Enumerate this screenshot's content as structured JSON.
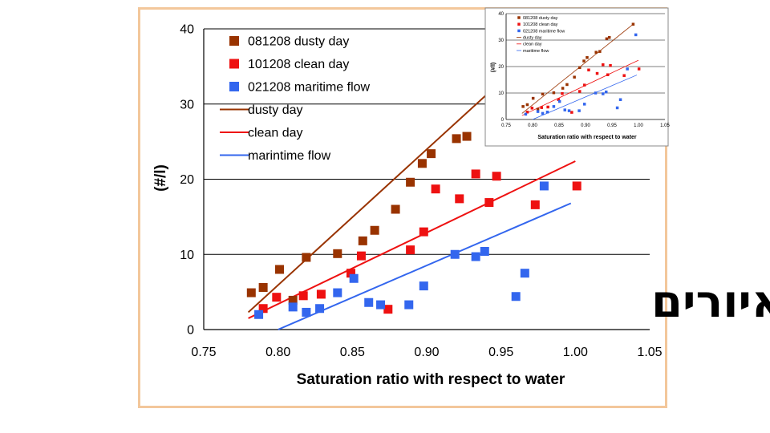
{
  "chart_data": [
    {
      "type": "scatter",
      "title": "",
      "xlabel": "Saturation ratio with respect to water",
      "ylabel": "(#/l)",
      "xlim": [
        0.75,
        1.05
      ],
      "ylim": [
        0,
        40
      ],
      "xticks": [
        "0.75",
        "0.80",
        "0.85",
        "0.90",
        "0.95",
        "1.00",
        "1.05"
      ],
      "yticks": [
        "0",
        "10",
        "20",
        "30",
        "40"
      ],
      "grid": "horizontal",
      "legend_position": "top-left",
      "series": [
        {
          "name": "081208 dusty day",
          "kind": "points",
          "color": "#993300",
          "points": [
            [
              0.782,
              4.9
            ],
            [
              0.79,
              5.6
            ],
            [
              0.801,
              8.0
            ],
            [
              0.81,
              3.9
            ],
            [
              0.819,
              9.6
            ],
            [
              0.84,
              10.1
            ],
            [
              0.857,
              11.8
            ],
            [
              0.865,
              13.2
            ],
            [
              0.879,
              16.0
            ],
            [
              0.889,
              19.6
            ],
            [
              0.897,
              22.1
            ],
            [
              0.903,
              23.4
            ],
            [
              0.92,
              25.4
            ],
            [
              0.927,
              25.7
            ]
          ]
        },
        {
          "name": "101208 clean day",
          "kind": "points",
          "color": "#ee1111",
          "points": [
            [
              0.79,
              2.8
            ],
            [
              0.799,
              4.3
            ],
            [
              0.817,
              4.5
            ],
            [
              0.829,
              4.7
            ],
            [
              0.849,
              7.5
            ],
            [
              0.856,
              9.8
            ],
            [
              0.874,
              2.7
            ],
            [
              0.889,
              10.6
            ],
            [
              0.898,
              13.0
            ],
            [
              0.906,
              18.7
            ],
            [
              0.922,
              17.4
            ],
            [
              0.933,
              20.7
            ],
            [
              0.942,
              16.9
            ],
            [
              0.947,
              20.4
            ],
            [
              0.973,
              16.6
            ],
            [
              1.001,
              19.1
            ]
          ]
        },
        {
          "name": "021208 maritime flow",
          "kind": "points",
          "color": "#3366ee",
          "points": [
            [
              0.787,
              2.0
            ],
            [
              0.81,
              3.0
            ],
            [
              0.819,
              2.3
            ],
            [
              0.828,
              2.8
            ],
            [
              0.84,
              4.9
            ],
            [
              0.851,
              6.8
            ],
            [
              0.861,
              3.6
            ],
            [
              0.869,
              3.3
            ],
            [
              0.888,
              3.3
            ],
            [
              0.898,
              5.8
            ],
            [
              0.919,
              10.0
            ],
            [
              0.933,
              9.7
            ],
            [
              0.939,
              10.4
            ],
            [
              0.96,
              4.4
            ],
            [
              0.966,
              7.5
            ],
            [
              0.979,
              19.1
            ]
          ]
        },
        {
          "name": "dusty day",
          "kind": "line",
          "color": "#993300",
          "points": [
            [
              0.78,
              2.3
            ],
            [
              0.95,
              33.0
            ]
          ]
        },
        {
          "name": "clean day",
          "kind": "line",
          "color": "#ee1111",
          "points": [
            [
              0.78,
              1.5
            ],
            [
              1.0,
              22.4
            ]
          ]
        },
        {
          "name": "marintime flow",
          "kind": "line",
          "color": "#3366ee",
          "points": [
            [
              0.8,
              0.0
            ],
            [
              0.997,
              16.8
            ]
          ]
        }
      ]
    },
    {
      "type": "scatter",
      "title": "",
      "xlabel": "Saturation ratio with respect to water",
      "ylabel": "(#/l)",
      "xlim": [
        0.75,
        1.05
      ],
      "ylim": [
        0,
        40
      ],
      "xticks": [
        "0.75",
        "0.80",
        "0.85",
        "0.90",
        "0.95",
        "1.00",
        "1.05"
      ],
      "yticks": [
        "0",
        "10",
        "20",
        "30",
        "40"
      ],
      "grid": "horizontal",
      "legend_position": "top-left",
      "series": [
        {
          "name": "081208 dusty day",
          "kind": "points",
          "color": "#993300",
          "points": [
            [
              0.782,
              4.9
            ],
            [
              0.79,
              5.6
            ],
            [
              0.801,
              8.0
            ],
            [
              0.81,
              3.9
            ],
            [
              0.819,
              9.6
            ],
            [
              0.84,
              10.1
            ],
            [
              0.857,
              11.8
            ],
            [
              0.865,
              13.2
            ],
            [
              0.879,
              16.0
            ],
            [
              0.889,
              19.6
            ],
            [
              0.897,
              22.1
            ],
            [
              0.903,
              23.4
            ],
            [
              0.92,
              25.4
            ],
            [
              0.927,
              25.7
            ],
            [
              0.94,
              30.5
            ],
            [
              0.945,
              31.0
            ],
            [
              0.99,
              36.0
            ]
          ]
        },
        {
          "name": "101208 clean day",
          "kind": "points",
          "color": "#ee1111",
          "points": [
            [
              0.79,
              2.8
            ],
            [
              0.799,
              4.3
            ],
            [
              0.817,
              4.5
            ],
            [
              0.829,
              4.7
            ],
            [
              0.849,
              7.5
            ],
            [
              0.856,
              9.8
            ],
            [
              0.874,
              2.7
            ],
            [
              0.889,
              10.6
            ],
            [
              0.898,
              13.0
            ],
            [
              0.906,
              18.7
            ],
            [
              0.922,
              17.4
            ],
            [
              0.933,
              20.7
            ],
            [
              0.942,
              16.9
            ],
            [
              0.947,
              20.4
            ],
            [
              0.973,
              16.6
            ],
            [
              1.001,
              19.1
            ]
          ]
        },
        {
          "name": "021208 maritime flow",
          "kind": "points",
          "color": "#3366ee",
          "points": [
            [
              0.787,
              2.0
            ],
            [
              0.81,
              3.0
            ],
            [
              0.819,
              2.3
            ],
            [
              0.828,
              2.8
            ],
            [
              0.84,
              4.9
            ],
            [
              0.851,
              6.8
            ],
            [
              0.861,
              3.6
            ],
            [
              0.869,
              3.3
            ],
            [
              0.888,
              3.3
            ],
            [
              0.898,
              5.8
            ],
            [
              0.919,
              10.0
            ],
            [
              0.933,
              9.7
            ],
            [
              0.939,
              10.4
            ],
            [
              0.96,
              4.4
            ],
            [
              0.966,
              7.5
            ],
            [
              0.979,
              19.1
            ],
            [
              0.995,
              32.0
            ]
          ]
        },
        {
          "name": "dusty day",
          "kind": "line",
          "color": "#993300",
          "points": [
            [
              0.78,
              2.3
            ],
            [
              0.99,
              36.0
            ]
          ]
        },
        {
          "name": "clean day",
          "kind": "line",
          "color": "#ee1111",
          "points": [
            [
              0.78,
              1.5
            ],
            [
              1.0,
              22.4
            ]
          ]
        },
        {
          "name": "maritime flow",
          "kind": "line",
          "color": "#3366ee",
          "points": [
            [
              0.8,
              0.0
            ],
            [
              0.997,
              16.8
            ]
          ]
        }
      ]
    }
  ],
  "overlay_text": "גודל איורים"
}
